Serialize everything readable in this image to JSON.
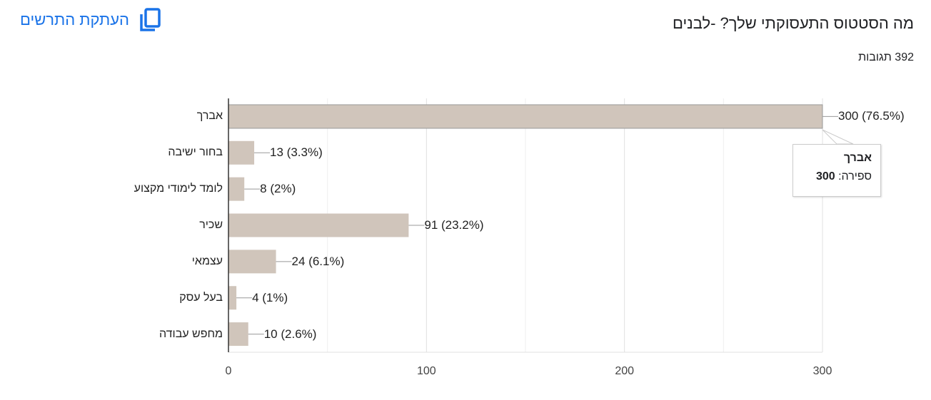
{
  "header": {
    "title": "מה הסטטוס התעסוקתי שלך? -לבנים",
    "responses": "392 תגובות",
    "copy_label": "העתקת התרשים",
    "copy_icon": "copy-icon"
  },
  "tooltip": {
    "category": "אברך",
    "count_label": "ספירה:",
    "count_value": "300"
  },
  "chart_data": {
    "type": "bar",
    "orientation": "horizontal",
    "categories": [
      "אברך",
      "בחור ישיבה",
      "לומד לימודי מקצוע",
      "שכיר",
      "עצמאי",
      "בעל עסק",
      "מחפש עבודה"
    ],
    "values": [
      300,
      13,
      8,
      91,
      24,
      4,
      10
    ],
    "data_labels": [
      "300 (76.5%)",
      "13 (3.3%)",
      "8 (2%)",
      "91 (23.2%)",
      "24 (6.1%)",
      "4 (1%)",
      "10 (2.6%)"
    ],
    "xlim": [
      0,
      300
    ],
    "xticks": [
      "0",
      "100",
      "200",
      "300"
    ],
    "grid": true,
    "bar_color": "#d0c5bb",
    "highlighted_category": "אברך"
  }
}
